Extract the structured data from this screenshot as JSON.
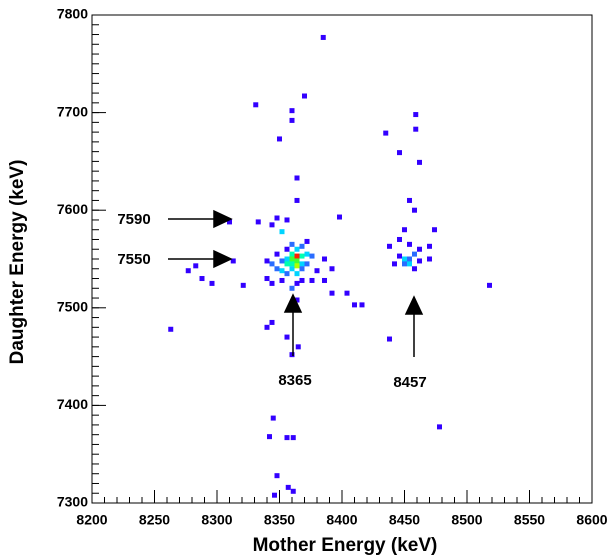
{
  "chart_data": {
    "type": "heatmap",
    "x_label": "Mother Energy (keV)",
    "y_label": "Daughter Energy (keV)",
    "xlim": [
      8200,
      8600
    ],
    "ylim": [
      7300,
      7800
    ],
    "xticks": [
      8200,
      8250,
      8300,
      8350,
      8400,
      8450,
      8500,
      8550,
      8600
    ],
    "yticks": [
      7300,
      7400,
      7500,
      7600,
      7700,
      7800
    ],
    "count_colors": [
      "#3300ff",
      "#2a6cff",
      "#00d4ff",
      "#00ffb0",
      "#40ff30",
      "#b0ff00",
      "#ff2000"
    ],
    "annotations": [
      "7590",
      "7550",
      "8365",
      "8457"
    ],
    "x": [
      8385,
      8370,
      8331,
      8360,
      8360,
      8350,
      8459,
      8459,
      8435,
      8446,
      8462,
      8364,
      8364,
      8310,
      8263,
      8277,
      8283,
      8288,
      8296,
      8313,
      8321,
      8333,
      8340,
      8340,
      8340,
      8344,
      8344,
      8344,
      8344,
      8348,
      8348,
      8348,
      8352,
      8352,
      8352,
      8352,
      8356,
      8356,
      8356,
      8356,
      8356,
      8360,
      8360,
      8360,
      8360,
      8360,
      8360,
      8364,
      8364,
      8364,
      8364,
      8364,
      8364,
      8364,
      8365,
      8368,
      8368,
      8368,
      8368,
      8368,
      8372,
      8372,
      8372,
      8376,
      8376,
      8380,
      8386,
      8386,
      8392,
      8392,
      8398,
      8404,
      8410,
      8416,
      8438,
      8438,
      8442,
      8446,
      8446,
      8450,
      8450,
      8450,
      8454,
      8454,
      8454,
      8454,
      8458,
      8458,
      8458,
      8462,
      8462,
      8470,
      8470,
      8474,
      8518,
      8478,
      8345,
      8342,
      8356,
      8361,
      8348,
      8346,
      8357,
      8361,
      8356,
      8360
    ],
    "values": [
      7777,
      7717,
      7708,
      7702,
      7692,
      7673,
      7698,
      7683,
      7679,
      7659,
      7649,
      7633,
      7610,
      7588,
      7478,
      7538,
      7543,
      7530,
      7525,
      7548,
      7523,
      7588,
      7548,
      7530,
      7480,
      7585,
      7545,
      7525,
      7485,
      7592,
      7540,
      7555,
      7578,
      7548,
      7538,
      7528,
      7590,
      7560,
      7550,
      7545,
      7535,
      7565,
      7555,
      7550,
      7545,
      7540,
      7520,
      7560,
      7553,
      7548,
      7543,
      7535,
      7525,
      7508,
      7460,
      7563,
      7553,
      7545,
      7540,
      7528,
      7555,
      7545,
      7568,
      7553,
      7528,
      7538,
      7550,
      7528,
      7515,
      7540,
      7593,
      7515,
      7503,
      7503,
      7563,
      7468,
      7545,
      7553,
      7570,
      7550,
      7545,
      7580,
      7610,
      7550,
      7545,
      7565,
      7600,
      7555,
      7540,
      7548,
      7560,
      7550,
      7563,
      7580,
      7523,
      7378,
      7387,
      7368,
      7367,
      7367,
      7328,
      7308,
      7316,
      7312,
      7470,
      7452
    ],
    "counts": [
      1,
      1,
      1,
      1,
      1,
      1,
      1,
      1,
      1,
      1,
      1,
      1,
      1,
      1,
      1,
      1,
      1,
      1,
      1,
      1,
      1,
      1,
      1,
      1,
      1,
      1,
      2,
      1,
      1,
      1,
      2,
      1,
      3,
      2,
      3,
      1,
      1,
      1,
      3,
      4,
      2,
      2,
      4,
      5,
      4,
      3,
      2,
      3,
      7,
      5,
      6,
      3,
      1,
      1,
      1,
      2,
      4,
      3,
      2,
      1,
      3,
      2,
      1,
      2,
      1,
      1,
      1,
      1,
      1,
      1,
      1,
      1,
      1,
      1,
      1,
      1,
      1,
      1,
      1,
      3,
      2,
      1,
      1,
      2,
      3,
      1,
      1,
      2,
      1,
      1,
      1,
      1,
      1,
      1,
      1,
      1,
      1,
      1,
      1,
      1,
      1,
      1,
      1,
      1,
      1,
      1
    ]
  }
}
